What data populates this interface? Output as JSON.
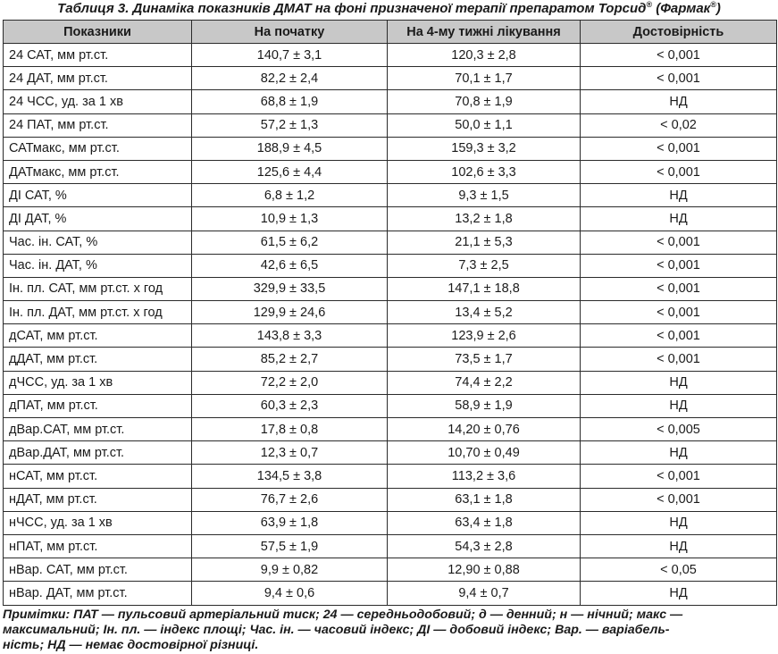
{
  "caption": {
    "text": "Таблиця 3. Динаміка показників ДМАТ на фоні призначеної терапії препаратом Торсид",
    "mark1": "®",
    "brand": " (Фармак",
    "mark2": "®",
    "close": ")"
  },
  "table": {
    "headers": [
      "Показники",
      "На початку",
      "На 4-му тижні лікування",
      "Достовірність"
    ],
    "rows": [
      [
        "24 САТ, мм рт.ст.",
        "140,7 ± 3,1",
        "120,3 ± 2,8",
        "< 0,001"
      ],
      [
        "24 ДАТ, мм рт.ст.",
        "82,2 ± 2,4",
        "70,1 ± 1,7",
        "< 0,001"
      ],
      [
        "24 ЧСС, уд. за 1 хв",
        "68,8 ± 1,9",
        "70,8 ± 1,9",
        "НД"
      ],
      [
        "24 ПАТ, мм рт.ст.",
        "57,2 ± 1,3",
        "50,0 ± 1,1",
        "< 0,02"
      ],
      [
        "САТмакс, мм рт.ст.",
        "188,9 ± 4,5",
        "159,3 ± 3,2",
        "< 0,001"
      ],
      [
        "ДАТмакс, мм рт.ст.",
        "125,6 ± 4,4",
        "102,6 ± 3,3",
        "< 0,001"
      ],
      [
        "ДІ САТ, %",
        "6,8 ± 1,2",
        "9,3 ± 1,5",
        "НД"
      ],
      [
        "ДІ ДАТ, %",
        "10,9 ± 1,3",
        "13,2 ± 1,8",
        "НД"
      ],
      [
        "Час. ін. САТ, %",
        "61,5 ± 6,2",
        "21,1 ± 5,3",
        "< 0,001"
      ],
      [
        "Час. ін. ДАТ, %",
        "42,6 ± 6,5",
        "7,3 ± 2,5",
        "< 0,001"
      ],
      [
        "Ін. пл. САТ, мм рт.ст. х год",
        "329,9 ± 33,5",
        "147,1 ± 18,8",
        "< 0,001"
      ],
      [
        "Ін. пл. ДАТ, мм рт.ст. х год",
        "129,9 ± 24,6",
        "13,4 ± 5,2",
        "< 0,001"
      ],
      [
        "дСАТ, мм рт.ст.",
        "143,8 ± 3,3",
        "123,9 ± 2,6",
        "< 0,001"
      ],
      [
        "дДАТ, мм рт.ст.",
        "85,2 ± 2,7",
        "73,5 ± 1,7",
        "< 0,001"
      ],
      [
        "дЧСС, уд. за 1 хв",
        "72,2 ± 2,0",
        "74,4 ± 2,2",
        "НД"
      ],
      [
        "дПАТ, мм рт.ст.",
        "60,3 ± 2,3",
        "58,9 ± 1,9",
        "НД"
      ],
      [
        "дВар.САТ, мм рт.ст.",
        "17,8 ± 0,8",
        "14,20 ± 0,76",
        "< 0,005"
      ],
      [
        "дВар.ДАТ, мм рт.ст.",
        "12,3 ± 0,7",
        "10,70 ± 0,49",
        "НД"
      ],
      [
        "нСАТ, мм рт.ст.",
        "134,5 ± 3,8",
        "113,2 ± 3,6",
        "< 0,001"
      ],
      [
        "нДАТ, мм рт.ст.",
        "76,7 ± 2,6",
        "63,1 ± 1,8",
        "< 0,001"
      ],
      [
        "нЧСС, уд. за 1 хв",
        "63,9 ± 1,8",
        "63,4 ± 1,8",
        "НД"
      ],
      [
        "нПАТ, мм рт.ст.",
        "57,5 ± 1,9",
        "54,3 ± 2,8",
        "НД"
      ],
      [
        "нВар. САТ, мм рт.ст.",
        "9,9 ± 0,82",
        "12,90 ± 0,88",
        "< 0,05"
      ],
      [
        "нВар. ДАТ, мм рт.ст.",
        "9,4 ± 0,6",
        "9,4 ± 0,7",
        "НД"
      ]
    ]
  },
  "notes": {
    "lines": [
      "Примітки: ПАТ — пульсовий артеріальний тиск; 24 — середньодобовий; д — денний; н — нічний; макс —",
      "максимальний; Ін. пл. — індекс площі; Час. ін. — часовий індекс; ДІ — добовий індекс; Вар. — варіабель-",
      "ність; НД — немає достовірної різниці."
    ]
  },
  "colors": {
    "header_bg": "#c8c8c8",
    "border": "#2b2b2b",
    "text": "#1a1a1a"
  }
}
